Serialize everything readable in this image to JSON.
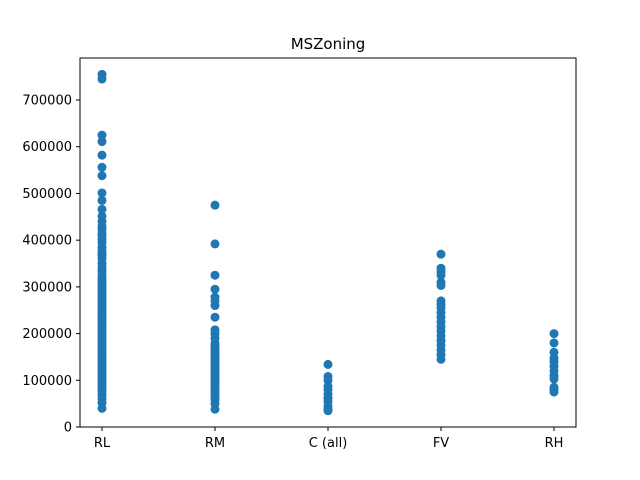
{
  "chart_data": {
    "type": "scatter",
    "title": "MSZoning",
    "xlabel": "",
    "ylabel": "",
    "categories": [
      "RL",
      "RM",
      "C (all)",
      "FV",
      "RH"
    ],
    "ylim": [
      0,
      790000
    ],
    "yticks": [
      0,
      100000,
      200000,
      300000,
      400000,
      500000,
      600000,
      700000
    ],
    "ytick_labels": [
      "0",
      "100000",
      "200000",
      "300000",
      "400000",
      "500000",
      "600000",
      "700000"
    ],
    "grid": false,
    "marker_color": "#1f77b4",
    "series": [
      {
        "category": "RL",
        "values": [
          755000,
          745000,
          625000,
          611000,
          582000,
          556000,
          538000,
          501000,
          485000,
          466000,
          451000,
          440000,
          430000,
          424000,
          415000,
          410000,
          402000,
          395000,
          385000,
          378000,
          372000,
          367000,
          360000,
          350000,
          342000,
          335000,
          328000,
          320000,
          315000,
          310000,
          305000,
          300000,
          295000,
          290000,
          285000,
          280000,
          275000,
          270000,
          265000,
          260000,
          255000,
          250000,
          245000,
          240000,
          235000,
          230000,
          225000,
          220000,
          215000,
          210000,
          205000,
          200000,
          195000,
          190000,
          185000,
          180000,
          175000,
          170000,
          165000,
          160000,
          155000,
          150000,
          145000,
          140000,
          135000,
          130000,
          125000,
          120000,
          115000,
          110000,
          105000,
          100000,
          95000,
          90000,
          85000,
          80000,
          75000,
          68000,
          60000,
          52000,
          40000
        ]
      },
      {
        "category": "RM",
        "values": [
          475000,
          392000,
          325000,
          295000,
          278000,
          270000,
          260000,
          235000,
          208000,
          200000,
          190000,
          180000,
          175000,
          170000,
          165000,
          160000,
          155000,
          150000,
          145000,
          140000,
          135000,
          130000,
          125000,
          120000,
          115000,
          110000,
          105000,
          100000,
          95000,
          90000,
          85000,
          80000,
          75000,
          70000,
          65000,
          58000,
          50000,
          38000
        ]
      },
      {
        "category": "C (all)",
        "values": [
          134000,
          108000,
          100000,
          87000,
          80000,
          70000,
          62000,
          55000,
          45000,
          40000,
          37000,
          35000
        ]
      },
      {
        "category": "FV",
        "values": [
          370000,
          340000,
          333000,
          325000,
          310000,
          303000,
          270000,
          262000,
          255000,
          245000,
          235000,
          225000,
          215000,
          205000,
          195000,
          185000,
          175000,
          165000,
          155000,
          145000
        ]
      },
      {
        "category": "RH",
        "values": [
          200000,
          180000,
          160000,
          148000,
          140000,
          130000,
          120000,
          110000,
          103000,
          85000,
          80000,
          75000
        ]
      }
    ]
  }
}
